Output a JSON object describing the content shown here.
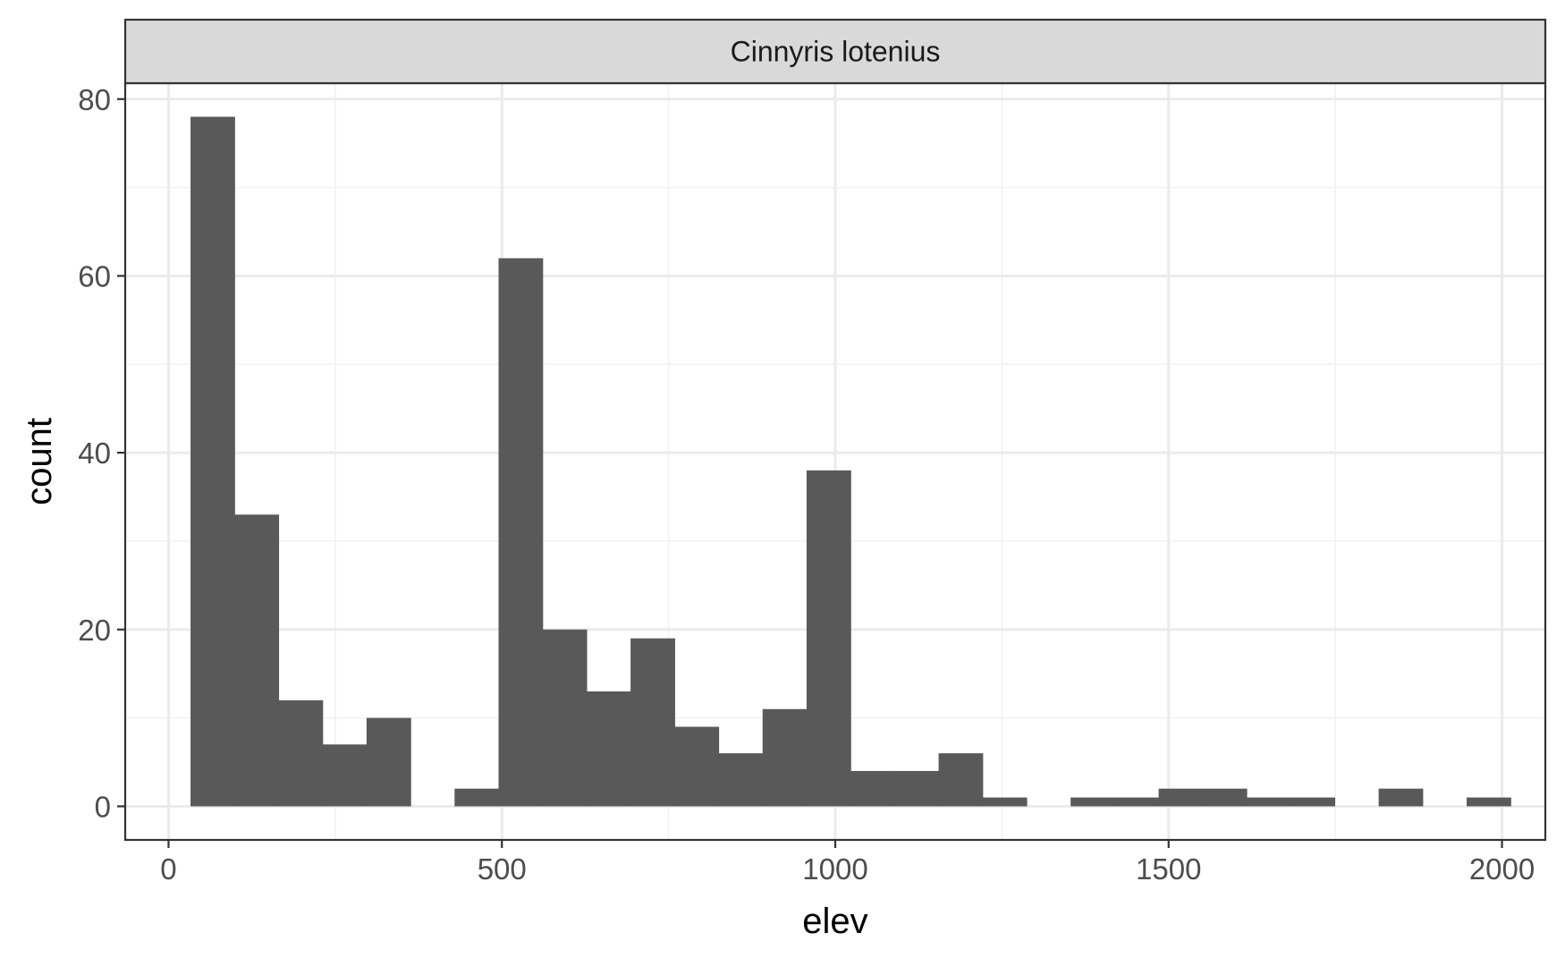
{
  "chart_data": {
    "type": "bar",
    "subtype": "histogram",
    "facet_label": "Cinnyris lotenius",
    "xlabel": "elev",
    "ylabel": "count",
    "xlim": [
      -65,
      2065
    ],
    "ylim": [
      -3.8,
      81.8
    ],
    "x_ticks": [
      0,
      500,
      1000,
      1500,
      2000
    ],
    "x_tick_labels": [
      "0",
      "500",
      "1000",
      "1500",
      "2000"
    ],
    "y_ticks": [
      0,
      20,
      40,
      60,
      80
    ],
    "y_tick_labels": [
      "0",
      "20",
      "40",
      "60",
      "80"
    ],
    "bin_width": 66,
    "bins": [
      {
        "x_start": 33,
        "x_end": 99,
        "count": 78
      },
      {
        "x_start": 99,
        "x_end": 165,
        "count": 33
      },
      {
        "x_start": 165,
        "x_end": 231,
        "count": 12
      },
      {
        "x_start": 231,
        "x_end": 297,
        "count": 7
      },
      {
        "x_start": 297,
        "x_end": 363,
        "count": 10
      },
      {
        "x_start": 363,
        "x_end": 429,
        "count": 0
      },
      {
        "x_start": 429,
        "x_end": 495,
        "count": 2
      },
      {
        "x_start": 495,
        "x_end": 561,
        "count": 62
      },
      {
        "x_start": 561,
        "x_end": 627,
        "count": 20
      },
      {
        "x_start": 627,
        "x_end": 693,
        "count": 13
      },
      {
        "x_start": 693,
        "x_end": 759,
        "count": 19
      },
      {
        "x_start": 759,
        "x_end": 825,
        "count": 9
      },
      {
        "x_start": 825,
        "x_end": 891,
        "count": 6
      },
      {
        "x_start": 891,
        "x_end": 957,
        "count": 11
      },
      {
        "x_start": 957,
        "x_end": 1023,
        "count": 38
      },
      {
        "x_start": 1023,
        "x_end": 1089,
        "count": 4
      },
      {
        "x_start": 1089,
        "x_end": 1155,
        "count": 4
      },
      {
        "x_start": 1155,
        "x_end": 1221,
        "count": 6
      },
      {
        "x_start": 1221,
        "x_end": 1287,
        "count": 1
      },
      {
        "x_start": 1287,
        "x_end": 1353,
        "count": 0
      },
      {
        "x_start": 1353,
        "x_end": 1419,
        "count": 1
      },
      {
        "x_start": 1419,
        "x_end": 1485,
        "count": 1
      },
      {
        "x_start": 1485,
        "x_end": 1551,
        "count": 2
      },
      {
        "x_start": 1551,
        "x_end": 1617,
        "count": 2
      },
      {
        "x_start": 1617,
        "x_end": 1683,
        "count": 1
      },
      {
        "x_start": 1683,
        "x_end": 1749,
        "count": 1
      },
      {
        "x_start": 1749,
        "x_end": 1815,
        "count": 0
      },
      {
        "x_start": 1815,
        "x_end": 1881,
        "count": 2
      },
      {
        "x_start": 1881,
        "x_end": 1947,
        "count": 0
      },
      {
        "x_start": 1947,
        "x_end": 2013,
        "count": 1
      }
    ],
    "colors": {
      "bar": "#595959",
      "grid_major": "#ebebeb",
      "grid_minor": "#f2f2f2",
      "panel_border": "#333333",
      "strip_fill": "#d9d9d9",
      "tick_text": "#4d4d4d"
    }
  }
}
